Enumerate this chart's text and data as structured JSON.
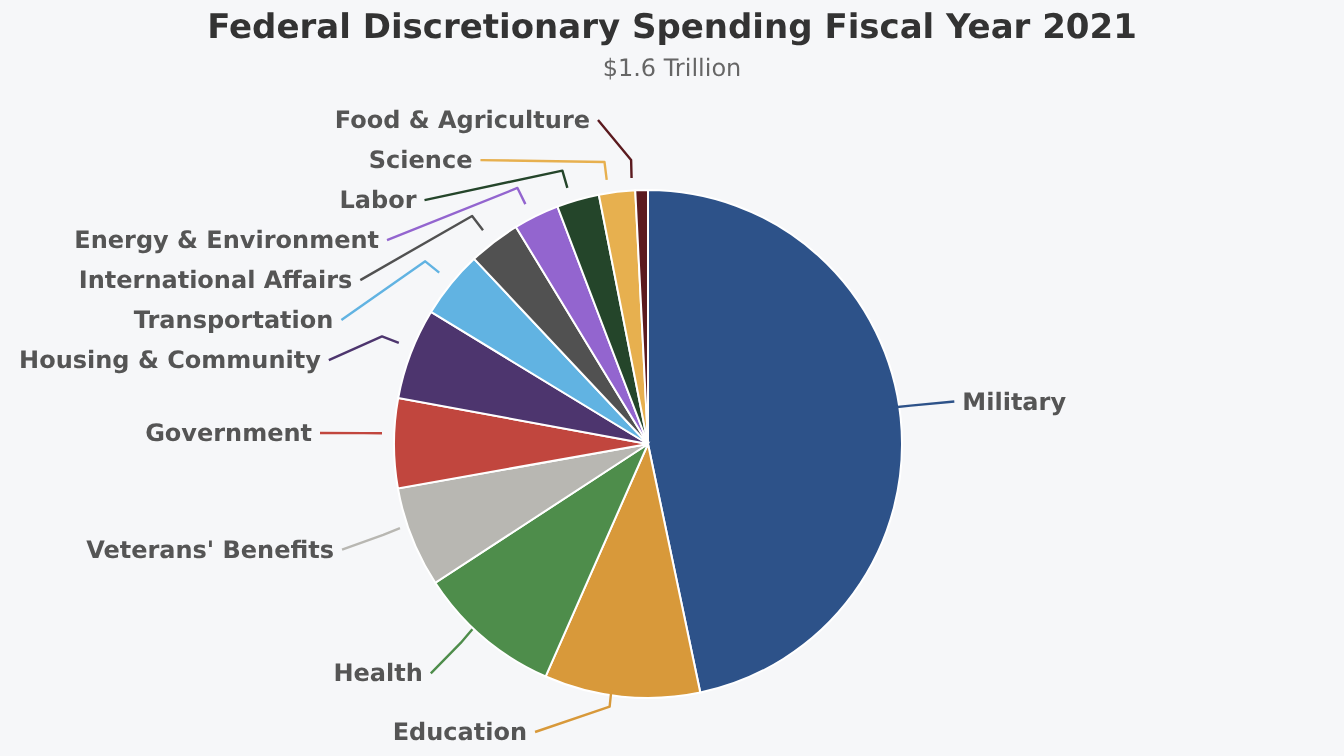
{
  "chart_data": {
    "type": "pie",
    "title": "Federal Discretionary Spending Fiscal Year 2021",
    "subtitle": "$1.6 Trillion",
    "categories": [
      "Military",
      "Education",
      "Health",
      "Veterans' Benefits",
      "Government",
      "Housing & Community",
      "Transportation",
      "International Affairs",
      "Energy & Environment",
      "Labor",
      "Science",
      "Food & Agriculture"
    ],
    "values": [
      46.7,
      9.9,
      9.2,
      6.4,
      5.7,
      5.8,
      4.3,
      3.3,
      2.9,
      2.7,
      2.3,
      0.8
    ],
    "colors": [
      "#2d5289",
      "#d8993a",
      "#4e8d4b",
      "#b8b7b2",
      "#c1463e",
      "#4d356e",
      "#61b3e2",
      "#515151",
      "#9365cf",
      "#24452a",
      "#e7b04f",
      "#5b1a1f"
    ],
    "legend": false
  }
}
